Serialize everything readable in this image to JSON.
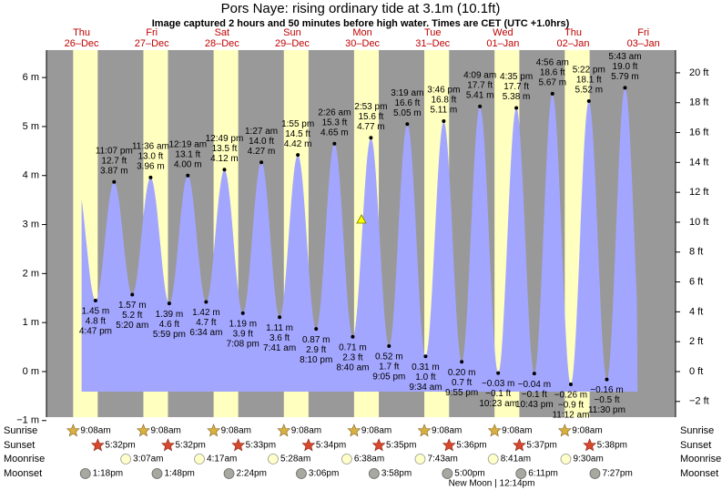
{
  "chart_data": {
    "type": "tide",
    "title": "Pors Naye: rising  ordinary tide at 3.1m (10.1ft)",
    "subtitle": "Image captured 2 hours and 50 minutes before high water. Times are CET (UTC +1.0hrs)",
    "days": [
      {
        "name": "Thu",
        "date": "26–Dec"
      },
      {
        "name": "Fri",
        "date": "27–Dec"
      },
      {
        "name": "Sat",
        "date": "28–Dec"
      },
      {
        "name": "Sun",
        "date": "29–Dec"
      },
      {
        "name": "Mon",
        "date": "30–Dec"
      },
      {
        "name": "Tue",
        "date": "31–Dec"
      },
      {
        "name": "Wed",
        "date": "01–Jan"
      },
      {
        "name": "Thu",
        "date": "02–Jan"
      },
      {
        "name": "Fri",
        "date": "03–Jan"
      }
    ],
    "xlim": [
      0,
      215
    ],
    "ylim": [
      -0.93,
      6.56
    ],
    "yticks": [
      {
        "value": 6,
        "label": "6 m"
      },
      {
        "value": 5,
        "label": "5 m"
      },
      {
        "value": 4,
        "label": "4 m"
      },
      {
        "value": 3,
        "label": "3 m"
      },
      {
        "value": 2,
        "label": "2 m"
      },
      {
        "value": 1,
        "label": "1 m"
      },
      {
        "value": 0,
        "label": "0 m"
      },
      {
        "value": -1,
        "label": "−1 m"
      }
    ],
    "y2lim": [
      -3.05,
      21.52
    ],
    "y2ticks": [
      {
        "value": 20,
        "label": "20 ft"
      },
      {
        "value": 18,
        "label": "18 ft"
      },
      {
        "value": 16,
        "label": "16 ft"
      },
      {
        "value": 14,
        "label": "14 ft"
      },
      {
        "value": 12,
        "label": "12 ft"
      },
      {
        "value": 10,
        "label": "10 ft"
      },
      {
        "value": 8,
        "label": "8 ft"
      },
      {
        "value": 6,
        "label": "6 ft"
      },
      {
        "value": 4,
        "label": "4 ft"
      },
      {
        "value": 2,
        "label": "2 ft"
      },
      {
        "value": 0,
        "label": "0 ft"
      },
      {
        "value": -2,
        "label": "−2 ft"
      }
    ],
    "tides": {
      "x": [
        16.78,
        23.12,
        29.33,
        35.6,
        41.98,
        48.32,
        54.57,
        60.82,
        67.13,
        73.45,
        79.68,
        85.92,
        92.17,
        98.43,
        104.67,
        110.88,
        117.08,
        123.32,
        129.57,
        135.77,
        141.92,
        148.15,
        154.38,
        160.58,
        166.72,
        172.93,
        179.2,
        185.37,
        191.5,
        197.72
      ],
      "times": [
        "4:47 pm",
        "11:07 pm",
        "5:20 am",
        "11:36 am",
        "5:59 pm",
        "12:19 am",
        "6:34 am",
        "12:49 pm",
        "7:08 pm",
        "1:27 am",
        "7:41 am",
        "1:55 pm",
        "8:10 pm",
        "2:26 am",
        "8:40 am",
        "2:53 pm",
        "9:05 pm",
        "3:19 am",
        "9:34 am",
        "3:46 pm",
        "9:55 pm",
        "4:09 am",
        "10:23 am",
        "4:35 pm",
        "10:43 pm",
        "4:56 am",
        "11:12 am",
        "5:22 pm",
        "11:30 pm",
        "5:43 am"
      ],
      "values": [
        1.45,
        3.87,
        1.57,
        3.96,
        1.39,
        4.0,
        1.42,
        4.12,
        1.19,
        4.27,
        1.11,
        4.42,
        0.87,
        4.65,
        0.71,
        4.77,
        0.52,
        5.05,
        0.31,
        5.11,
        0.2,
        5.41,
        -0.03,
        5.38,
        -0.04,
        5.67,
        -0.26,
        5.52,
        -0.16,
        5.79
      ],
      "value_labels": [
        "1.45 m",
        "3.87 m",
        "1.57 m",
        "3.96 m",
        "1.39 m",
        "4.00 m",
        "1.42 m",
        "4.12 m",
        "1.19 m",
        "4.27 m",
        "1.11 m",
        "4.42 m",
        "0.87 m",
        "4.65 m",
        "0.71 m",
        "4.77 m",
        "0.52 m",
        "5.05 m",
        "0.31 m",
        "5.11 m",
        "0.20 m",
        "5.41 m",
        "−0.03 m",
        "5.38 m",
        "−0.04 m",
        "5.67 m",
        "−0.26 m",
        "5.52 m",
        "−0.16 m",
        "5.79 m"
      ],
      "ft_labels": [
        "4.8 ft",
        "12.7 ft",
        "5.2 ft",
        "13.0 ft",
        "4.6 ft",
        "13.1 ft",
        "4.7 ft",
        "13.5 ft",
        "3.9 ft",
        "14.0 ft",
        "3.6 ft",
        "14.5 ft",
        "2.9 ft",
        "15.3 ft",
        "2.3 ft",
        "15.6 ft",
        "1.7 ft",
        "16.6 ft",
        "1.0 ft",
        "16.8 ft",
        "0.7 ft",
        "17.7 ft",
        "−0.1 ft",
        "17.7 ft",
        "−0.1 ft",
        "18.6 ft",
        "−0.9 ft",
        "18.1 ft",
        "−0.5 ft",
        "19.0 ft"
      ]
    },
    "row_labels": [
      "Sunrise",
      "Sunset",
      "Moonrise",
      "Moonset"
    ],
    "sunrise": [
      "9:08am",
      "9:08am",
      "9:08am",
      "9:08am",
      "9:08am",
      "9:08am",
      "9:08am",
      "9:08am",
      null
    ],
    "sunset": [
      "5:32pm",
      "5:32pm",
      "5:33pm",
      "5:34pm",
      "5:35pm",
      "5:36pm",
      "5:37pm",
      "5:38pm",
      null
    ],
    "moonrise": [
      null,
      "3:07am",
      "4:17am",
      "5:28am",
      "6:38am",
      "7:43am",
      "8:41am",
      "9:30am",
      null
    ],
    "moonset": [
      "1:18pm",
      "1:48pm",
      "2:24pm",
      "3:06pm",
      "3:58pm",
      "5:00pm",
      "6:11pm",
      "7:27pm",
      null
    ],
    "moon_phase": "New Moon | 12:14pm"
  }
}
